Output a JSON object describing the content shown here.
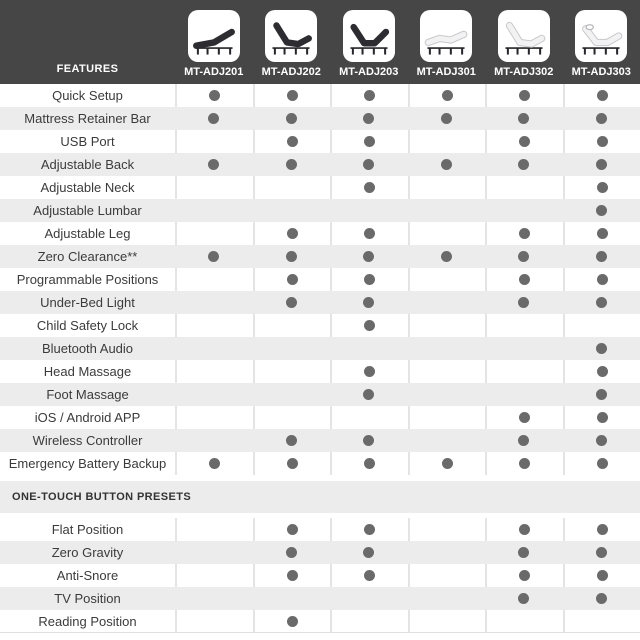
{
  "header": {
    "features_label": "FEATURES",
    "models": [
      "MT-ADJ201",
      "MT-ADJ202",
      "MT-ADJ203",
      "MT-ADJ301",
      "MT-ADJ302",
      "MT-ADJ303"
    ],
    "thumbnails": [
      "bed-dark-flat-incline-icon",
      "bed-dark-head-raised-icon",
      "bed-dark-head-foot-raised-icon",
      "bed-light-flat-contour-icon",
      "bed-light-head-raised-icon",
      "bed-light-head-raised-pillow-icon"
    ]
  },
  "chart_data": {
    "type": "table",
    "columns": [
      "MT-ADJ201",
      "MT-ADJ202",
      "MT-ADJ203",
      "MT-ADJ301",
      "MT-ADJ302",
      "MT-ADJ303"
    ],
    "value_encoding": "1 = dot shown (feature available), 0 = blank (not available)",
    "sections": [
      {
        "title": "",
        "rows": [
          {
            "feature": "Quick Setup",
            "values": [
              1,
              1,
              1,
              1,
              1,
              1
            ]
          },
          {
            "feature": "Mattress Retainer Bar",
            "values": [
              1,
              1,
              1,
              1,
              1,
              1
            ]
          },
          {
            "feature": "USB Port",
            "values": [
              0,
              1,
              1,
              0,
              1,
              1
            ]
          },
          {
            "feature": "Adjustable Back",
            "values": [
              1,
              1,
              1,
              1,
              1,
              1
            ]
          },
          {
            "feature": "Adjustable Neck",
            "values": [
              0,
              0,
              1,
              0,
              0,
              1
            ]
          },
          {
            "feature": "Adjustable Lumbar",
            "values": [
              0,
              0,
              0,
              0,
              0,
              1
            ]
          },
          {
            "feature": "Adjustable Leg",
            "values": [
              0,
              1,
              1,
              0,
              1,
              1
            ]
          },
          {
            "feature": "Zero Clearance**",
            "values": [
              1,
              1,
              1,
              1,
              1,
              1
            ]
          },
          {
            "feature": "Programmable Positions",
            "values": [
              0,
              1,
              1,
              0,
              1,
              1
            ]
          },
          {
            "feature": "Under-Bed Light",
            "values": [
              0,
              1,
              1,
              0,
              1,
              1
            ]
          },
          {
            "feature": "Child Safety Lock",
            "values": [
              0,
              0,
              1,
              0,
              0,
              0
            ]
          },
          {
            "feature": "Bluetooth Audio",
            "values": [
              0,
              0,
              0,
              0,
              0,
              1
            ]
          },
          {
            "feature": "Head Massage",
            "values": [
              0,
              0,
              1,
              0,
              0,
              1
            ]
          },
          {
            "feature": "Foot Massage",
            "values": [
              0,
              0,
              1,
              0,
              0,
              1
            ]
          },
          {
            "feature": "iOS / Android APP",
            "values": [
              0,
              0,
              0,
              0,
              1,
              1
            ]
          },
          {
            "feature": "Wireless Controller",
            "values": [
              0,
              1,
              1,
              0,
              1,
              1
            ]
          },
          {
            "feature": "Emergency Battery Backup",
            "values": [
              1,
              1,
              1,
              1,
              1,
              1
            ]
          }
        ]
      },
      {
        "title": "ONE-TOUCH BUTTON PRESETS",
        "rows": [
          {
            "feature": "Flat Position",
            "values": [
              0,
              1,
              1,
              0,
              1,
              1
            ]
          },
          {
            "feature": "Zero Gravity",
            "values": [
              0,
              1,
              1,
              0,
              1,
              1
            ]
          },
          {
            "feature": "Anti-Snore",
            "values": [
              0,
              1,
              1,
              0,
              1,
              1
            ]
          },
          {
            "feature": "TV Position",
            "values": [
              0,
              0,
              0,
              0,
              1,
              1
            ]
          },
          {
            "feature": "Reading Position",
            "values": [
              0,
              1,
              0,
              0,
              0,
              0
            ]
          }
        ]
      }
    ]
  },
  "colors": {
    "header_bg": "#464646",
    "header_text": "#ffffff",
    "row_alt_bg": "#ececec",
    "row_separator": "#e4e4e4",
    "dot": "#6a6a6a",
    "feature_text": "#3b3b3b",
    "section_title_text": "#333333"
  }
}
